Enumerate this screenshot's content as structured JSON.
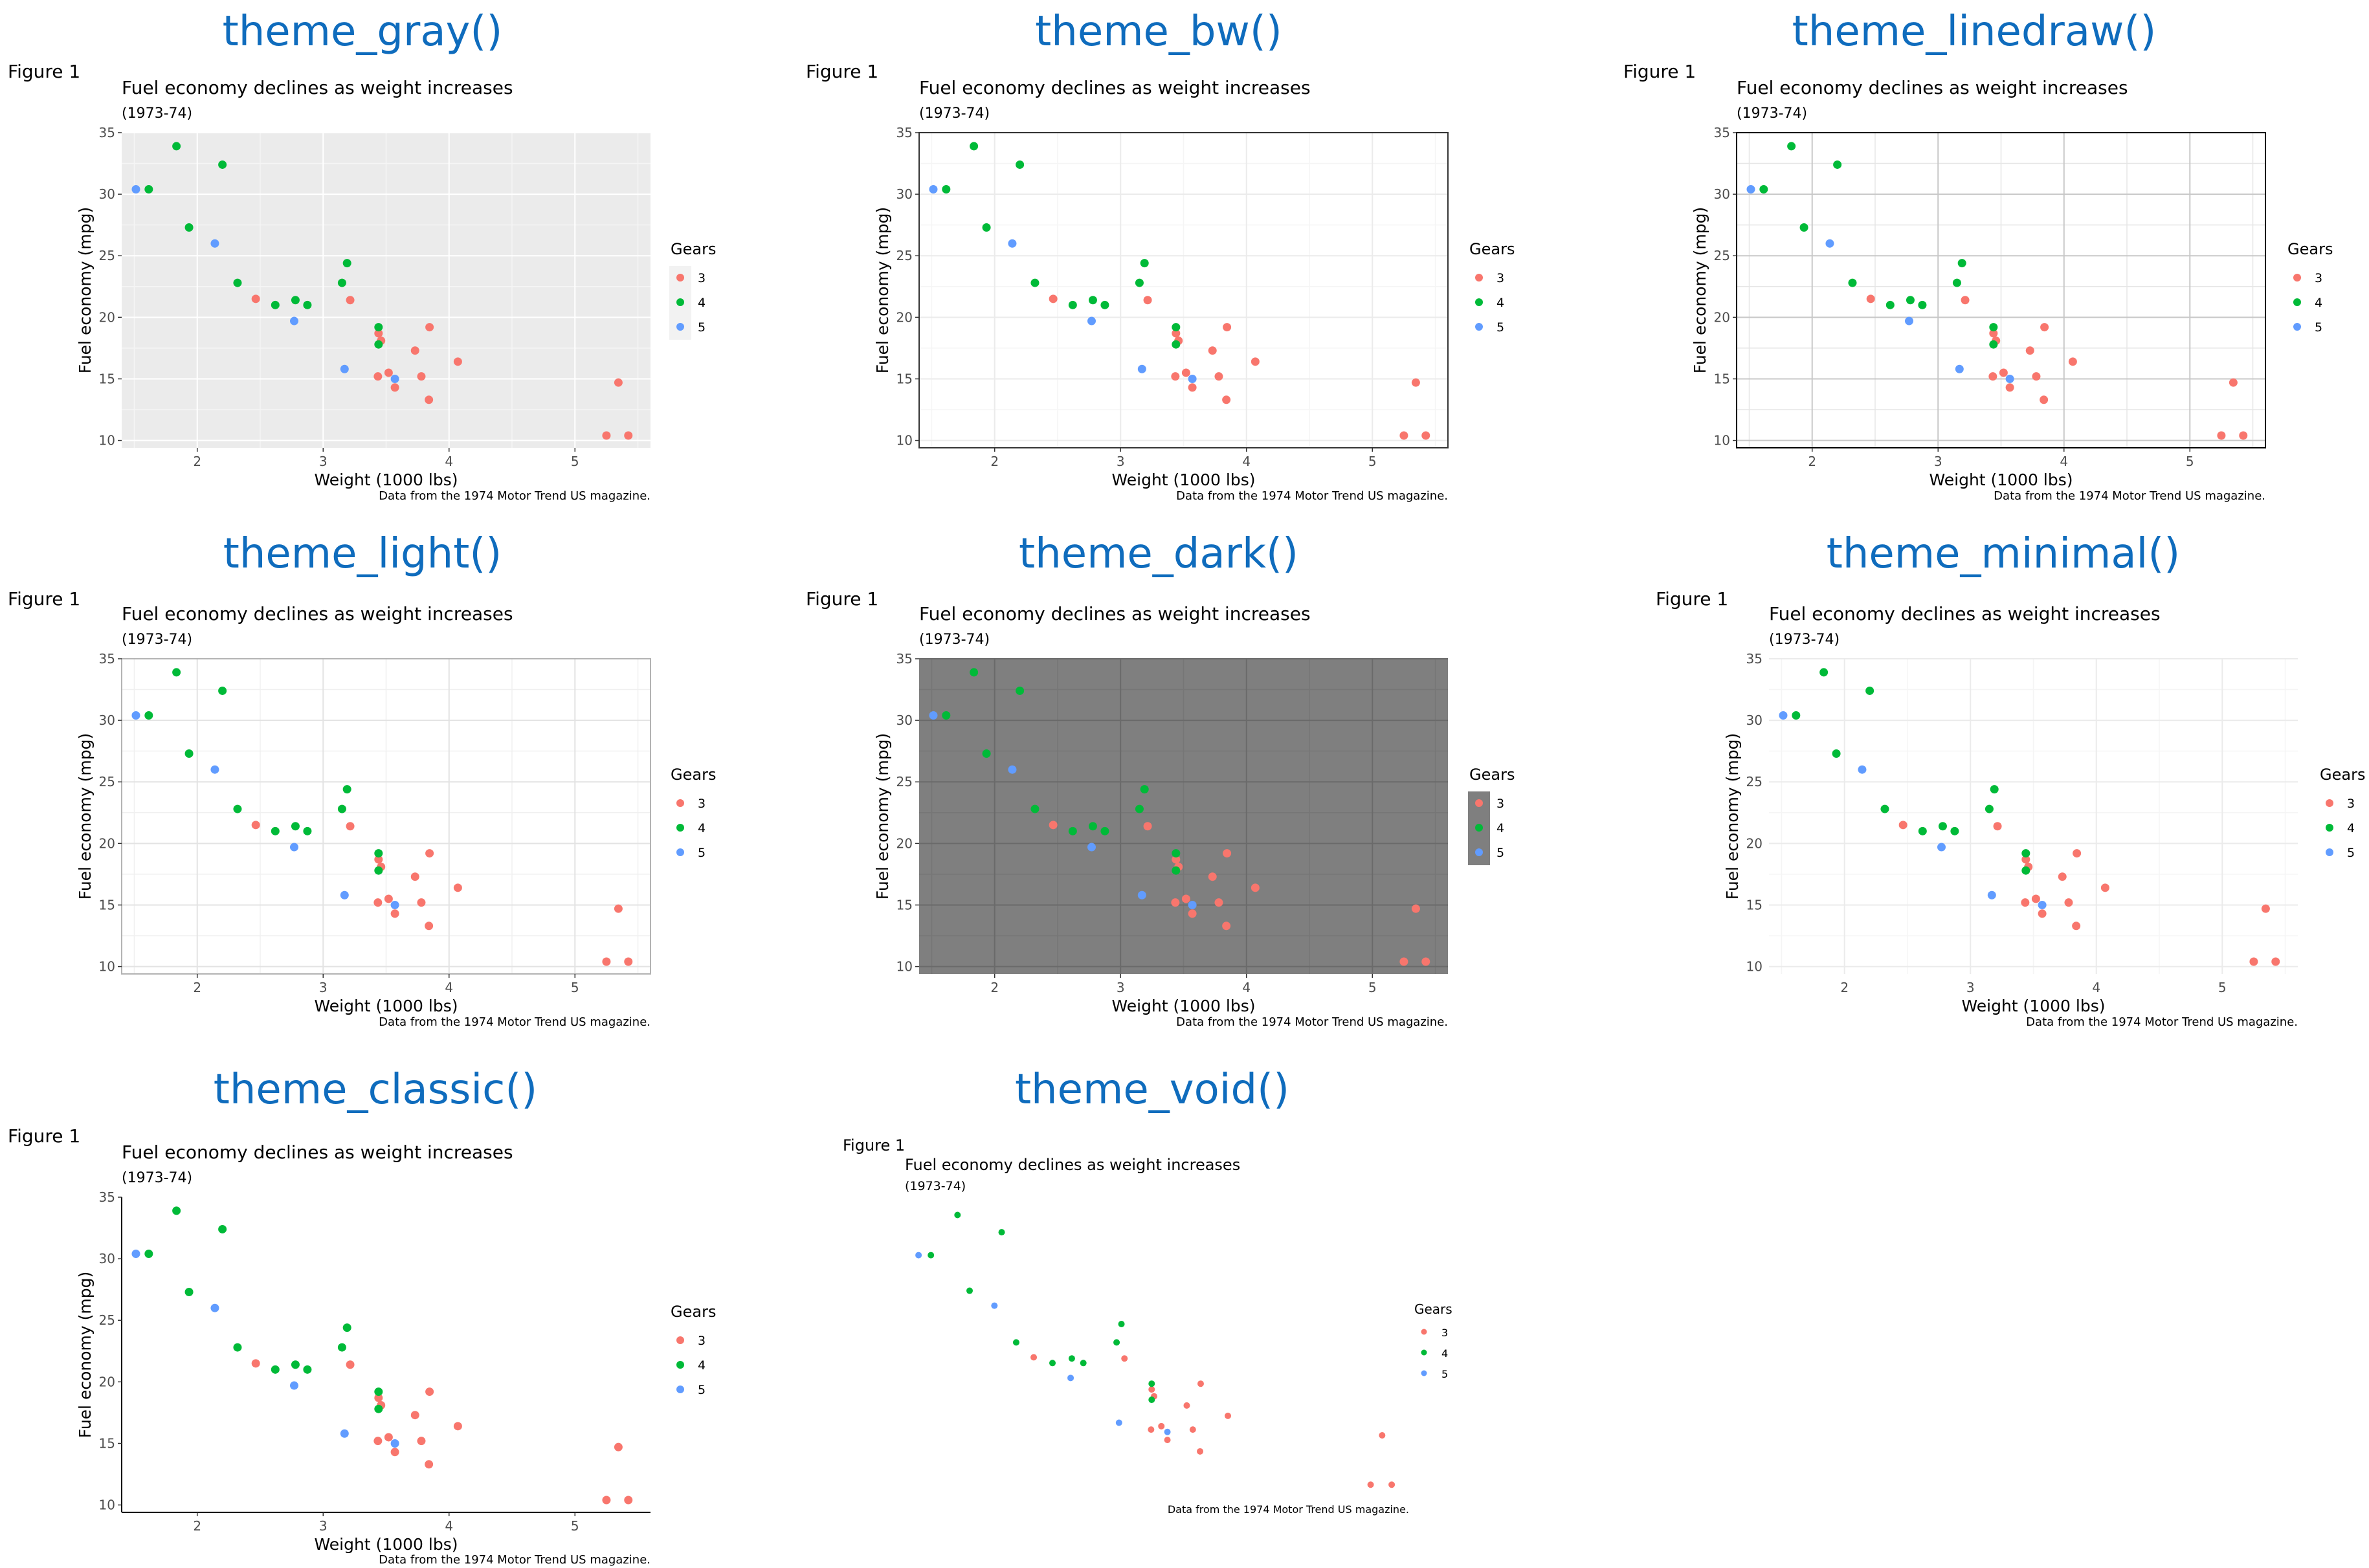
{
  "colors": {
    "gear3": "#F8766D",
    "gear4": "#00BA38",
    "gear5": "#619CFF",
    "heading": "#0F6CBD"
  },
  "panels": [
    {
      "heading": "theme_gray()",
      "theme": "gray"
    },
    {
      "heading": "theme_bw()",
      "theme": "bw"
    },
    {
      "heading": "theme_linedraw()",
      "theme": "linedraw"
    },
    {
      "heading": "theme_light()",
      "theme": "light"
    },
    {
      "heading": "theme_dark()",
      "theme": "dark"
    },
    {
      "heading": "theme_minimal()",
      "theme": "minimal"
    },
    {
      "heading": "theme_classic()",
      "theme": "classic"
    },
    {
      "heading": "theme_void()",
      "theme": "void"
    }
  ],
  "figure_label": "Figure 1",
  "chart_data": {
    "type": "scatter",
    "title": "Fuel economy declines as weight increases",
    "subtitle": "(1973-74)",
    "caption": "Data from the 1974 Motor Trend US magazine.",
    "xlabel": "Weight (1000 lbs)",
    "ylabel": "Fuel economy (mpg)",
    "xlim": [
      1.4,
      5.6
    ],
    "ylim": [
      9.4,
      35.0
    ],
    "xticks": [
      2,
      3,
      4,
      5
    ],
    "yticks": [
      10,
      15,
      20,
      25,
      30,
      35
    ],
    "legend": {
      "title": "Gears",
      "position": "right",
      "entries": [
        "3",
        "4",
        "5"
      ]
    },
    "series": [
      {
        "name": "3",
        "points": [
          [
            3.215,
            21.4
          ],
          [
            3.44,
            18.7
          ],
          [
            3.46,
            18.1
          ],
          [
            3.57,
            14.3
          ],
          [
            4.07,
            16.4
          ],
          [
            3.73,
            17.3
          ],
          [
            3.78,
            15.2
          ],
          [
            5.25,
            10.4
          ],
          [
            5.424,
            10.4
          ],
          [
            5.345,
            14.7
          ],
          [
            2.465,
            21.5
          ],
          [
            3.52,
            15.5
          ],
          [
            3.435,
            15.2
          ],
          [
            3.84,
            13.3
          ],
          [
            3.845,
            19.2
          ]
        ]
      },
      {
        "name": "4",
        "points": [
          [
            2.62,
            21.0
          ],
          [
            2.875,
            21.0
          ],
          [
            2.32,
            22.8
          ],
          [
            3.19,
            24.4
          ],
          [
            3.15,
            22.8
          ],
          [
            3.44,
            19.2
          ],
          [
            3.44,
            17.8
          ],
          [
            2.2,
            32.4
          ],
          [
            1.615,
            30.4
          ],
          [
            1.835,
            33.9
          ],
          [
            1.935,
            27.3
          ],
          [
            2.78,
            21.4
          ]
        ]
      },
      {
        "name": "5",
        "points": [
          [
            2.14,
            26.0
          ],
          [
            1.513,
            30.4
          ],
          [
            3.17,
            15.8
          ],
          [
            2.77,
            19.7
          ],
          [
            3.57,
            15.0
          ]
        ]
      }
    ]
  }
}
